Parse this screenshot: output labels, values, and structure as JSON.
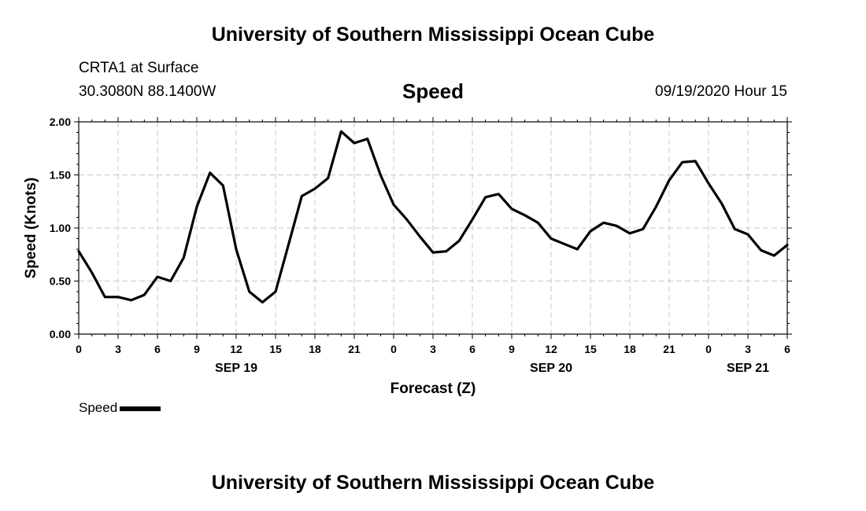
{
  "header": {
    "title": "University of Southern Mississippi Ocean Cube",
    "station": "CRTA1 at Surface",
    "location": "30.3080N 88.1400W",
    "variable": "Speed",
    "datetime": "09/19/2020 Hour 15"
  },
  "footer": {
    "title": "University of Southern Mississippi Ocean Cube"
  },
  "legend": {
    "label": "Speed",
    "color": "#000000"
  },
  "chart_data": {
    "type": "line",
    "title": "Speed",
    "xlabel": "Forecast (Z)",
    "ylabel": "Speed (Knots)",
    "ylim": [
      0,
      2
    ],
    "xlim": [
      "2020-09-19 00Z",
      "2020-09-21 06Z"
    ],
    "yticks": [
      "0.00",
      "0.50",
      "1.00",
      "1.50",
      "2.00"
    ],
    "xticks": [
      "0",
      "3",
      "6",
      "9",
      "12",
      "15",
      "18",
      "21",
      "0",
      "3",
      "6",
      "9",
      "12",
      "15",
      "18",
      "21",
      "0",
      "3",
      "6"
    ],
    "date_labels": [
      {
        "label": "SEP 19",
        "date": "2020-09-19 12Z"
      },
      {
        "label": "SEP 20",
        "date": "2020-09-20 12Z"
      },
      {
        "label": "SEP 21",
        "date": "2020-09-21 03Z"
      }
    ],
    "grid": true,
    "legend_position": "bottom-left",
    "series": [
      {
        "name": "Speed",
        "color": "#000000",
        "x": [
          "2020-09-19 00Z",
          "2020-09-19 01Z",
          "2020-09-19 02Z",
          "2020-09-19 03Z",
          "2020-09-19 04Z",
          "2020-09-19 05Z",
          "2020-09-19 06Z",
          "2020-09-19 07Z",
          "2020-09-19 08Z",
          "2020-09-19 09Z",
          "2020-09-19 10Z",
          "2020-09-19 11Z",
          "2020-09-19 12Z",
          "2020-09-19 13Z",
          "2020-09-19 14Z",
          "2020-09-19 15Z",
          "2020-09-19 16Z",
          "2020-09-19 17Z",
          "2020-09-19 18Z",
          "2020-09-19 19Z",
          "2020-09-19 20Z",
          "2020-09-19 21Z",
          "2020-09-19 22Z",
          "2020-09-19 23Z",
          "2020-09-20 00Z",
          "2020-09-20 01Z",
          "2020-09-20 02Z",
          "2020-09-20 03Z",
          "2020-09-20 04Z",
          "2020-09-20 05Z",
          "2020-09-20 06Z",
          "2020-09-20 07Z",
          "2020-09-20 08Z",
          "2020-09-20 09Z",
          "2020-09-20 10Z",
          "2020-09-20 11Z",
          "2020-09-20 12Z",
          "2020-09-20 13Z",
          "2020-09-20 14Z",
          "2020-09-20 15Z",
          "2020-09-20 16Z",
          "2020-09-20 17Z",
          "2020-09-20 18Z",
          "2020-09-20 19Z",
          "2020-09-20 20Z",
          "2020-09-20 21Z",
          "2020-09-20 22Z",
          "2020-09-20 23Z",
          "2020-09-21 00Z",
          "2020-09-21 01Z",
          "2020-09-21 02Z",
          "2020-09-21 03Z",
          "2020-09-21 04Z",
          "2020-09-21 05Z",
          "2020-09-21 06Z"
        ],
        "values": [
          0.78,
          0.58,
          0.35,
          0.35,
          0.32,
          0.37,
          0.54,
          0.5,
          0.72,
          1.2,
          1.52,
          1.4,
          0.8,
          0.4,
          0.3,
          0.4,
          0.85,
          1.3,
          1.37,
          1.47,
          1.91,
          1.8,
          1.84,
          1.5,
          1.22,
          1.08,
          0.92,
          0.77,
          0.78,
          0.88,
          1.08,
          1.29,
          1.32,
          1.18,
          1.12,
          1.05,
          0.9,
          0.85,
          0.8,
          0.97,
          1.05,
          1.02,
          0.95,
          0.99,
          1.2,
          1.45,
          1.62,
          1.63,
          1.42,
          1.23,
          0.99,
          0.94,
          0.79,
          0.74,
          0.84
        ]
      }
    ]
  }
}
